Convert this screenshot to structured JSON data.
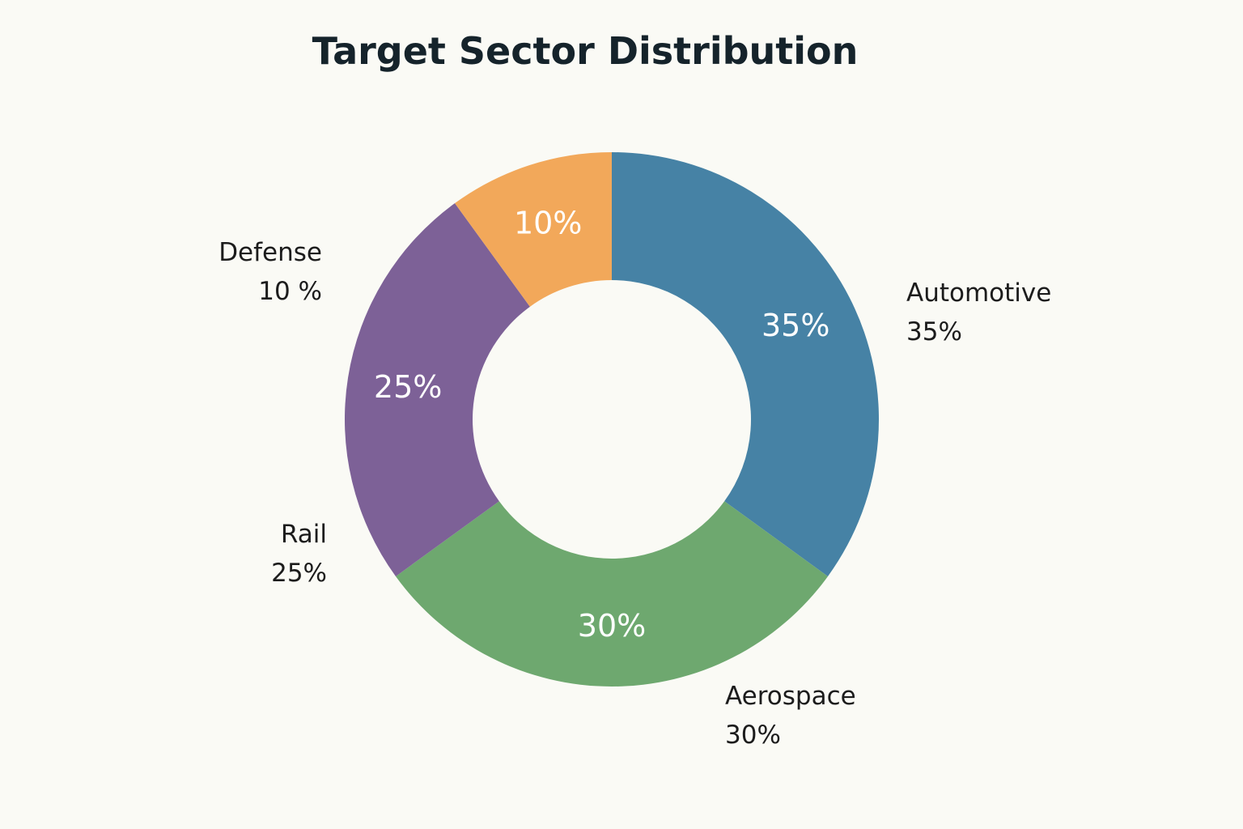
{
  "chart_data": {
    "type": "pie",
    "title": "Target Sector Distribution",
    "categories": [
      "Automotive",
      "Aerospace",
      "Rail",
      "Defense"
    ],
    "values": [
      35,
      30,
      25,
      10
    ],
    "slices": [
      {
        "name": "Automotive",
        "value": 35,
        "inner_label": "35%",
        "outer_label": "35%",
        "color": "#4682a5"
      },
      {
        "name": "Aerospace",
        "value": 30,
        "inner_label": "30%",
        "outer_label": "30%",
        "color": "#6ea86f"
      },
      {
        "name": "Rail",
        "value": 25,
        "inner_label": "25%",
        "outer_label": "25%",
        "color": "#7d6197"
      },
      {
        "name": "Defense",
        "value": 10,
        "inner_label": "10%",
        "outer_label": "10 %",
        "color": "#f2a85a"
      }
    ],
    "donut": true,
    "legend": "none"
  }
}
